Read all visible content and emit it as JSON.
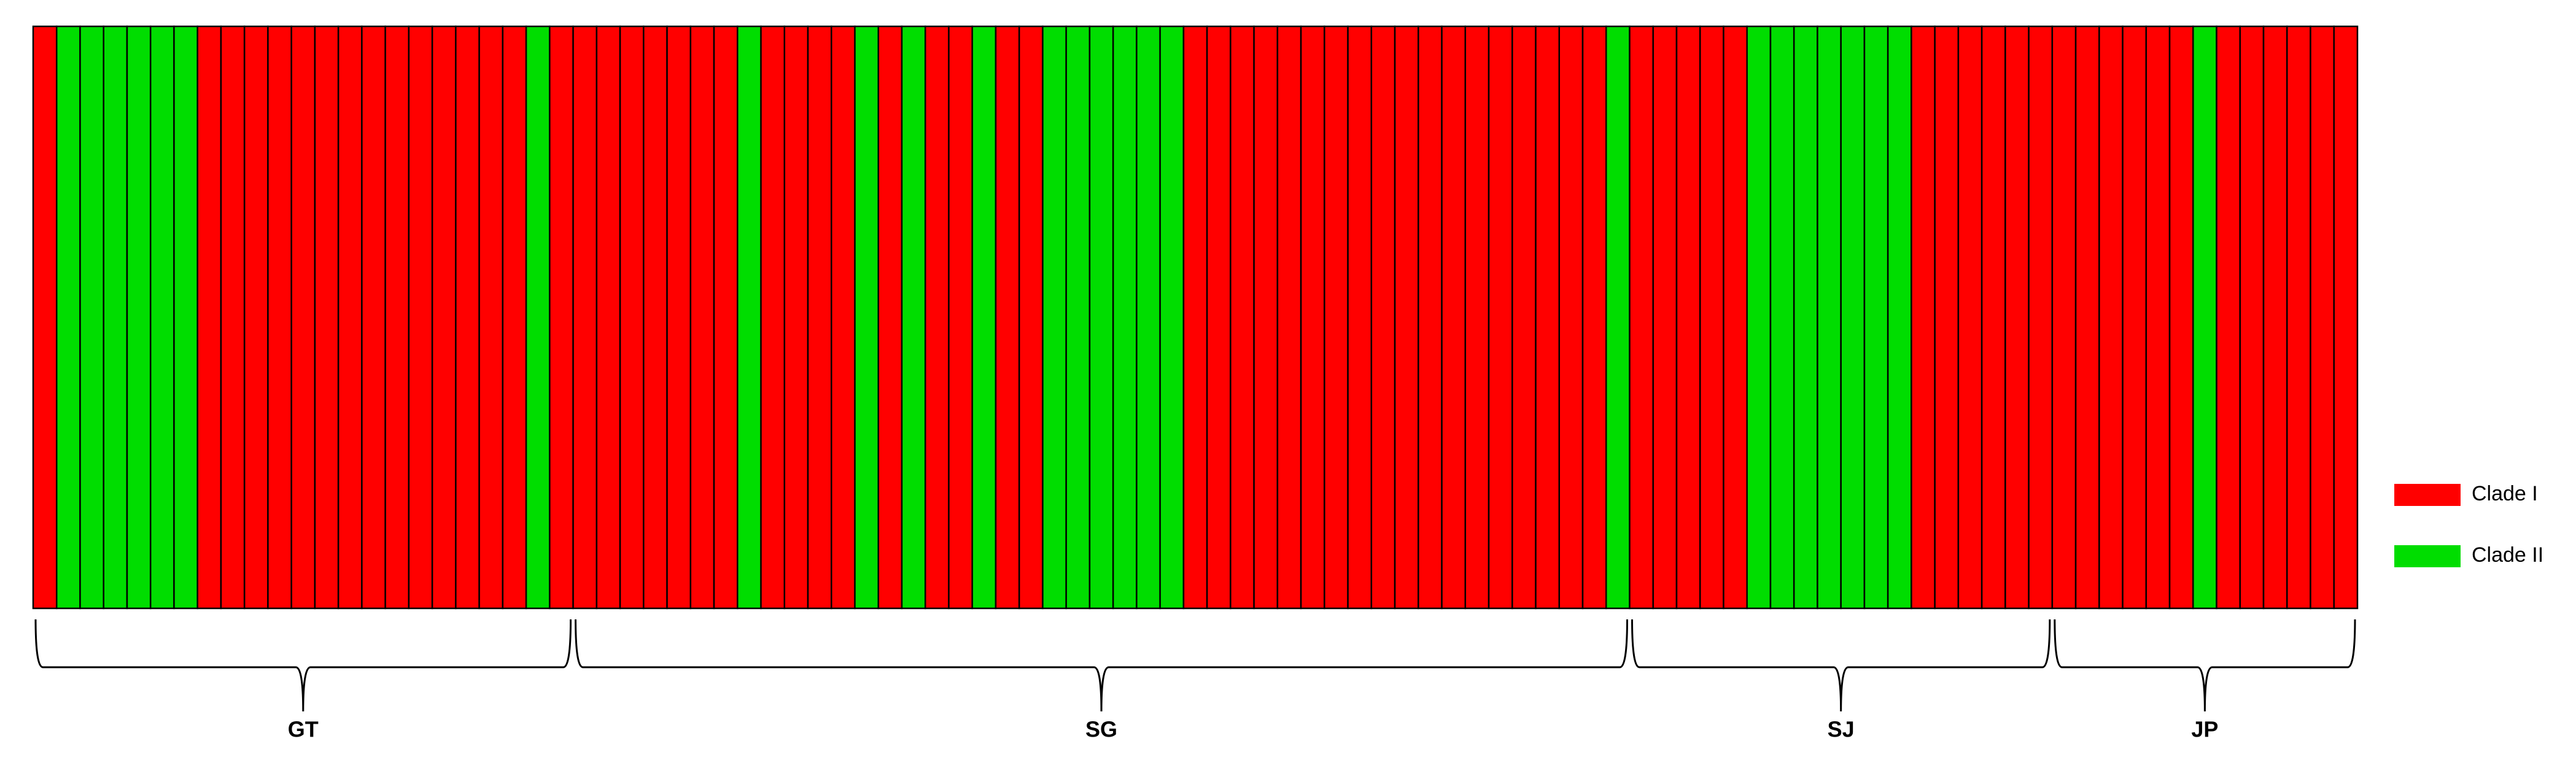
{
  "chart_data": {
    "type": "stacked-bar",
    "categories": [
      null,
      null,
      null,
      null,
      null,
      null,
      null,
      null,
      null,
      null,
      null,
      null,
      null,
      null,
      null,
      null,
      null,
      null,
      null,
      null,
      null,
      null,
      null,
      null,
      null,
      null,
      null,
      null,
      null,
      null,
      null,
      null,
      null,
      null,
      null,
      null,
      null,
      null,
      null,
      null,
      null,
      null,
      null,
      null,
      null,
      null,
      null,
      null,
      null,
      null,
      null,
      null,
      null,
      null,
      null,
      null,
      null,
      null,
      null,
      null,
      null,
      null,
      null,
      null,
      null,
      null,
      null,
      null,
      null,
      null,
      null,
      null,
      null,
      null,
      null,
      null,
      null,
      null,
      null,
      null,
      null,
      null,
      null,
      null,
      null,
      null,
      null,
      null,
      null,
      null,
      null,
      null,
      null,
      null,
      null,
      null,
      null,
      null,
      null
    ],
    "series": [
      {
        "name": "Clade I",
        "color": "#ff0000",
        "values": [
          1,
          0,
          0,
          0,
          0,
          0,
          0,
          1,
          1,
          1,
          1,
          1,
          1,
          1,
          1,
          1,
          1,
          1,
          1,
          1,
          1,
          0,
          1,
          1,
          1,
          1,
          1,
          1,
          1,
          1,
          0,
          1,
          1,
          1,
          1,
          0,
          1,
          0,
          1,
          1,
          0,
          1,
          1,
          0,
          0,
          0,
          0,
          0,
          0,
          1,
          1,
          1,
          1,
          1,
          1,
          1,
          1,
          1,
          1,
          1,
          1,
          1,
          1,
          1,
          1,
          1,
          1,
          0,
          1,
          1,
          1,
          1,
          1,
          0,
          0,
          0,
          0,
          0,
          0,
          0,
          1,
          1,
          1,
          1,
          1,
          1,
          1,
          1,
          1,
          1,
          1,
          1,
          0,
          1,
          1,
          1,
          1,
          1,
          1
        ]
      },
      {
        "name": "Clade II",
        "color": "#00dd00",
        "values": [
          0,
          1,
          1,
          1,
          1,
          1,
          1,
          0,
          0,
          0,
          0,
          0,
          0,
          0,
          0,
          0,
          0,
          0,
          0,
          0,
          0,
          1,
          0,
          0,
          0,
          0,
          0,
          0,
          0,
          0,
          1,
          0,
          0,
          0,
          0,
          1,
          0,
          1,
          0,
          0,
          1,
          0,
          0,
          1,
          1,
          1,
          1,
          1,
          1,
          0,
          0,
          0,
          0,
          0,
          0,
          0,
          0,
          0,
          0,
          0,
          0,
          0,
          0,
          0,
          0,
          0,
          0,
          1,
          0,
          0,
          0,
          0,
          0,
          1,
          1,
          1,
          1,
          1,
          1,
          1,
          0,
          0,
          0,
          0,
          0,
          0,
          0,
          0,
          0,
          0,
          0,
          0,
          1,
          0,
          0,
          0,
          0,
          0,
          0
        ]
      }
    ],
    "ylim": [
      0,
      1
    ],
    "groups": [
      {
        "label": "GT",
        "size": 23
      },
      {
        "label": "SG",
        "size": 45
      },
      {
        "label": "SJ",
        "size": 18
      },
      {
        "label": "JP",
        "size": 13
      }
    ],
    "legend": "right"
  }
}
